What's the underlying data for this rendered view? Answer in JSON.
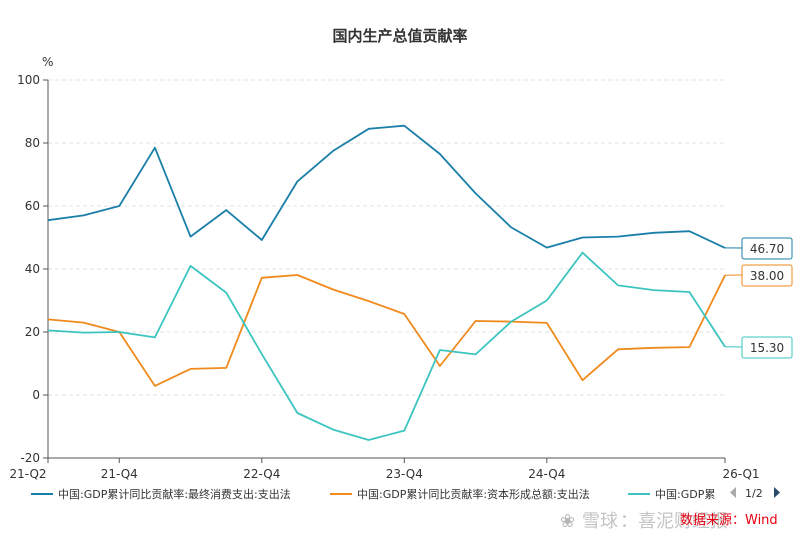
{
  "chart_data": {
    "type": "line",
    "title": "国内生产总值贡献率",
    "unit_label": "%",
    "ylim": [
      -20,
      100
    ],
    "yticks": [
      -20,
      0,
      20,
      40,
      60,
      80,
      100
    ],
    "x": [
      "21-Q2",
      "21-Q3",
      "21-Q4",
      "22-Q1",
      "22-Q2",
      "22-Q3",
      "22-Q4",
      "23-Q1",
      "23-Q2",
      "23-Q3",
      "23-Q4",
      "24-Q1",
      "24-Q2",
      "24-Q3",
      "24-Q4",
      "25-Q1",
      "25-Q2",
      "25-Q3",
      "25-Q4",
      "26-Q1"
    ],
    "xtick_labels": [
      {
        "index": 0,
        "label": "21-Q2"
      },
      {
        "index": 2,
        "label": "21-Q4"
      },
      {
        "index": 6,
        "label": "22-Q4"
      },
      {
        "index": 10,
        "label": "23-Q4"
      },
      {
        "index": 14,
        "label": "24-Q4"
      },
      {
        "index": 19,
        "label": "26-Q1"
      }
    ],
    "grid": true,
    "legend_position": "bottom",
    "series": [
      {
        "name": "中国:GDP累计同比贡献率:最终消费支出:支出法",
        "legend_label": "中国:GDP累计同比贡献率:最终消费支出:支出法",
        "color": "#1a7fa8",
        "values": [
          55.5,
          57.0,
          60.0,
          78.5,
          50.3,
          58.7,
          49.2,
          67.8,
          77.5,
          84.5,
          85.5,
          76.5,
          64.0,
          53.2,
          46.8,
          50.0,
          50.3,
          51.5,
          52.0,
          46.7
        ],
        "end_label": "46.70"
      },
      {
        "name": "中国:GDP累计同比贡献率:资本形成总额:支出法",
        "legend_label": "中国:GDP累计同比贡献率:资本形成总额:支出法",
        "color": "#f08a1c",
        "values": [
          24.0,
          23.0,
          20.0,
          2.9,
          8.3,
          8.6,
          37.2,
          38.1,
          33.5,
          29.8,
          25.7,
          9.2,
          23.5,
          23.3,
          22.9,
          4.7,
          14.5,
          15.0,
          15.2,
          38.0
        ],
        "end_label": "38.00"
      },
      {
        "name": "中国:GDP累",
        "legend_label": "中国:GDP累",
        "color": "#3cc4c0",
        "values": [
          20.5,
          19.8,
          20.0,
          18.3,
          41.0,
          32.5,
          13.0,
          -5.7,
          -11.0,
          -14.3,
          -11.3,
          14.3,
          12.9,
          23.3,
          30.0,
          45.2,
          34.8,
          33.3,
          32.7,
          15.3
        ],
        "end_label": "15.30"
      }
    ]
  },
  "legend_pager": {
    "text": "1/2"
  },
  "watermark": {
    "logo": "雪球",
    "text": "：喜泥财经报",
    "source": "数据来源：Wind"
  }
}
